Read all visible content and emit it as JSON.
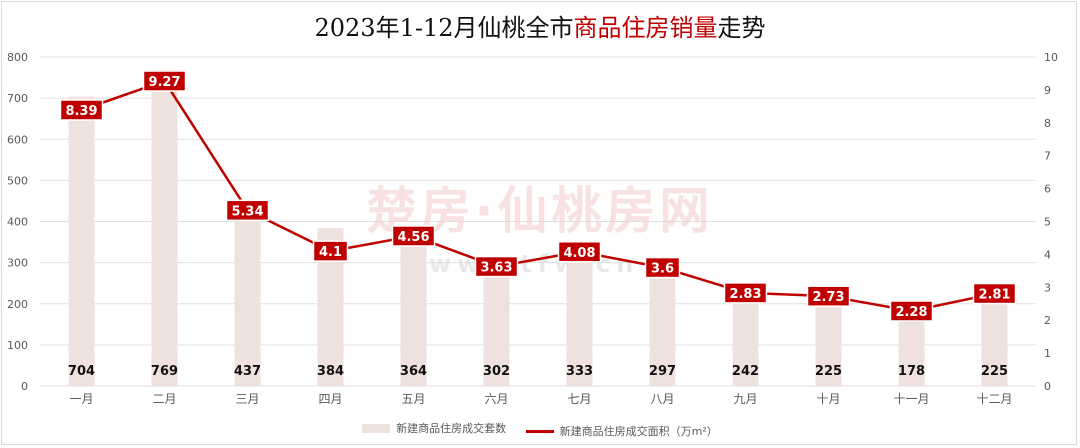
{
  "title": {
    "prefix": "2023年1-12月仙桃全市",
    "highlight": "商品住房销量",
    "suffix": "走势"
  },
  "watermark": {
    "main": "楚房·仙桃房网",
    "sub": "www.xtfw.cn"
  },
  "colors": {
    "bar": "#efe1dd",
    "line": "#c00000",
    "label_box": "#c00000",
    "grid": "#e0e0e0"
  },
  "chart_data": {
    "type": "bar",
    "categories": [
      "一月",
      "二月",
      "三月",
      "四月",
      "五月",
      "六月",
      "七月",
      "八月",
      "九月",
      "十月",
      "十一月",
      "十二月"
    ],
    "series": [
      {
        "name": "新建商品住房成交套数",
        "type": "bar",
        "axis": "left",
        "values": [
          704,
          769,
          437,
          384,
          364,
          302,
          333,
          297,
          242,
          225,
          178,
          225
        ],
        "labels": [
          "704",
          "769",
          "437",
          "384",
          "364",
          "302",
          "333",
          "297",
          "242",
          "225",
          "178",
          "225"
        ]
      },
      {
        "name": "新建商品住房成交面积（万m²）",
        "type": "line",
        "axis": "right",
        "values": [
          8.39,
          9.27,
          5.34,
          4.1,
          4.56,
          3.63,
          4.08,
          3.6,
          2.83,
          2.73,
          2.28,
          2.81
        ],
        "labels": [
          "8.39",
          "9.27",
          "5.34",
          "4.1",
          "4.56",
          "3.63",
          "4.08",
          "3.6",
          "2.83",
          "2.73",
          "2.28",
          "2.81"
        ]
      }
    ],
    "ylim_left": [
      0,
      800
    ],
    "yticks_left": [
      "0",
      "100",
      "200",
      "300",
      "400",
      "500",
      "600",
      "700",
      "800"
    ],
    "ylim_right": [
      0,
      10
    ],
    "yticks_right": [
      "0",
      "1",
      "2",
      "3",
      "4",
      "5",
      "6",
      "7",
      "8",
      "9",
      "10"
    ],
    "grid": true,
    "legend_position": "bottom"
  }
}
